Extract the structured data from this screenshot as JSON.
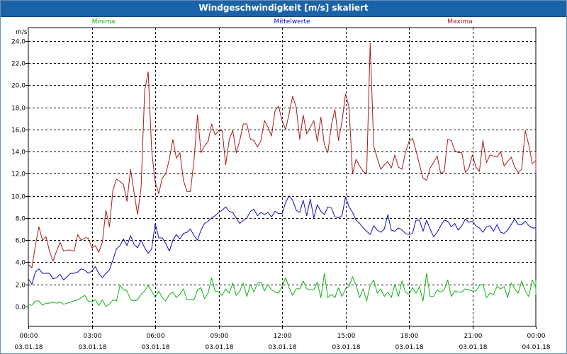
{
  "window": {
    "title": "Windgeschwindigkeit [m/s] skaliert"
  },
  "chart_data": {
    "type": "line",
    "title": "Windgeschwindigkeit [m/s] skaliert",
    "ylabel": "m/s",
    "xlabel": "",
    "ylim": [
      -1.8,
      25.2
    ],
    "xlim": [
      0,
      24
    ],
    "grid": true,
    "legend_placement": "top",
    "y_ticks": [
      "0.0",
      "2,0",
      "4,0",
      "6,0",
      "8,0",
      "10,0",
      "12,0",
      "14,0",
      "16,0",
      "18,0",
      "20,0",
      "22,0",
      "24,0"
    ],
    "y_tick_values": [
      0,
      2,
      4,
      6,
      8,
      10,
      12,
      14,
      16,
      18,
      20,
      22,
      24
    ],
    "x_ticks": [
      {
        "time": "00:00",
        "date": "03.01.18",
        "hour": 0
      },
      {
        "time": "03:00",
        "date": "03.01.18",
        "hour": 3
      },
      {
        "time": "06:00",
        "date": "03.01.18",
        "hour": 6
      },
      {
        "time": "09:00",
        "date": "03.01.18",
        "hour": 9
      },
      {
        "time": "12:00",
        "date": "03.01.18",
        "hour": 12
      },
      {
        "time": "15:00",
        "date": "03.01.18",
        "hour": 15
      },
      {
        "time": "18:00",
        "date": "03.01.18",
        "hour": 18
      },
      {
        "time": "21:00",
        "date": "03.01.18",
        "hour": 21
      },
      {
        "time": "00:00",
        "date": "04.01.18",
        "hour": 24
      }
    ],
    "x_hours_step": 0.166667,
    "series": [
      {
        "name": "Minima",
        "color": "#11b011",
        "values": [
          0.2,
          0.1,
          0.5,
          0.5,
          0.1,
          0.3,
          0.3,
          0.4,
          0.3,
          0.4,
          0.2,
          0.3,
          0.4,
          0.5,
          0.6,
          0.8,
          1.0,
          0.5,
          0.4,
          0.6,
          0.1,
          0.6,
          0.0,
          0.2,
          0.6,
          0.5,
          1.9,
          1.5,
          1.4,
          0.6,
          0.5,
          0.6,
          1.1,
          1.4,
          1.9,
          1.4,
          0.8,
          1.4,
          0.8,
          0.5,
          1.1,
          1.3,
          0.8,
          1.1,
          1.6,
          0.6,
          0.6,
          0.6,
          1.5,
          1.7,
          0.7,
          1.2,
          2.6,
          1.4,
          1.3,
          1.0,
          1.6,
          1.2,
          2.1,
          1.0,
          1.4,
          2.1,
          0.9,
          2.0,
          1.3,
          2.1,
          2.2,
          1.4,
          2.0,
          1.5,
          1.3,
          1.2,
          1.8,
          2.6,
          1.7,
          1.0,
          1.6,
          1.6,
          2.3,
          1.6,
          1.5,
          1.5,
          2.2,
          0.8,
          3.0,
          0.8,
          1.1,
          0.8,
          1.7,
          0.9,
          1.6,
          1.8,
          2.7,
          1.9,
          0.8,
          1.6,
          0.5,
          1.9,
          2.4,
          1.2,
          1.6,
          0.9,
          1.3,
          0.8,
          2.0,
          0.9,
          2.3,
          1.3,
          1.1,
          1.7,
          1.2,
          1.8,
          0.5,
          3.0,
          0.9,
          0.9,
          1.5,
          1.3,
          1.5,
          2.4,
          0.9,
          1.4,
          1.3,
          1.3,
          1.6,
          1.5,
          1.4,
          1.4,
          1.9,
          2.0,
          0.8,
          1.2,
          1.1,
          1.8,
          1.6,
          1.8,
          0.8,
          2.1,
          1.6,
          1.2,
          2.3,
          1.4,
          0.9,
          2.4,
          1.7,
          1.8,
          1.1,
          2.1,
          2.3,
          1.3
        ]
      },
      {
        "name": "Mittelwerte",
        "color": "#0b0bbf",
        "values": [
          2.5,
          2.0,
          3.1,
          3.4,
          3.0,
          3.0,
          3.0,
          2.5,
          2.6,
          2.9,
          2.4,
          2.7,
          3.0,
          3.0,
          3.1,
          3.4,
          3.3,
          3.0,
          3.2,
          3.6,
          3.0,
          2.6,
          3.0,
          3.3,
          4.2,
          5.2,
          5.5,
          6.1,
          5.5,
          6.4,
          5.6,
          5.3,
          6.0,
          5.3,
          4.8,
          5.2,
          7.5,
          6.2,
          6.2,
          5.7,
          5.0,
          6.0,
          6.5,
          6.1,
          6.6,
          6.7,
          7.0,
          6.4,
          6.0,
          6.9,
          7.5,
          7.7,
          8.0,
          8.2,
          8.5,
          8.7,
          9.0,
          8.6,
          8.5,
          8.0,
          7.5,
          7.8,
          8.0,
          8.6,
          8.8,
          8.2,
          8.5,
          8.3,
          8.5,
          8.1,
          8.6,
          8.4,
          8.4,
          9.4,
          10.0,
          9.6,
          8.7,
          8.5,
          9.6,
          8.2,
          9.7,
          8.0,
          9.2,
          8.6,
          8.3,
          9.0,
          8.9,
          8.1,
          8.0,
          8.2,
          9.9,
          9.0,
          8.5,
          7.8,
          7.5,
          7.1,
          6.8,
          6.5,
          7.3,
          6.9,
          6.7,
          7.0,
          8.3,
          6.9,
          6.8,
          7.1,
          6.9,
          6.6,
          6.5,
          6.6,
          7.8,
          7.8,
          6.8,
          7.8,
          7.0,
          6.3,
          6.7,
          7.3,
          7.8,
          7.7,
          7.2,
          7.5,
          6.9,
          7.3,
          7.9,
          7.6,
          7.7,
          7.3,
          7.1,
          6.7,
          7.2,
          7.3,
          6.8,
          7.4,
          6.7,
          6.6,
          6.9,
          7.4,
          7.9,
          7.4,
          7.4,
          7.7,
          7.3,
          7.1,
          7.1,
          7.6,
          7.5,
          7.8,
          7.7,
          7.9
        ]
      },
      {
        "name": "Maxima",
        "color": "#a81a1a",
        "values": [
          3.8,
          3.5,
          5.5,
          7.2,
          6.0,
          6.3,
          5.0,
          4.1,
          5.0,
          5.8,
          5.0,
          5.1,
          5.1,
          5.0,
          6.5,
          6.0,
          6.2,
          6.2,
          5.3,
          5.5,
          4.9,
          5.8,
          8.7,
          7.2,
          10.5,
          11.5,
          11.3,
          11.0,
          9.5,
          12.4,
          10.3,
          8.3,
          10.8,
          19.5,
          21.2,
          14.1,
          11.2,
          10.2,
          11.6,
          12.0,
          13.3,
          15.1,
          13.4,
          13.9,
          11.4,
          10.4,
          10.4,
          13.2,
          17.3,
          13.9,
          14.5,
          14.9,
          16.5,
          15.5,
          15.9,
          15.9,
          12.8,
          15.1,
          15.9,
          13.9,
          15.0,
          16.5,
          16.5,
          15.1,
          15.0,
          14.4,
          15.0,
          16.8,
          16.2,
          15.4,
          17.7,
          18.1,
          16.8,
          16.0,
          17.4,
          19.0,
          18.0,
          15.1,
          17.3,
          15.6,
          16.2,
          16.8,
          14.9,
          17.1,
          14.6,
          13.9,
          16.4,
          17.8,
          15.0,
          16.7,
          19.2,
          18.0,
          12.0,
          13.3,
          12.7,
          12.2,
          12.0,
          23.8,
          14.5,
          13.4,
          12.4,
          12.8,
          13.1,
          12.5,
          13.7,
          12.6,
          12.4,
          13.9,
          14.9,
          15.2,
          14.1,
          12.8,
          11.6,
          11.4,
          12.5,
          13.0,
          13.6,
          12.0,
          12.2,
          15.1,
          15.0,
          14.1,
          13.9,
          13.9,
          12.1,
          12.5,
          13.7,
          12.6,
          12.2,
          15.0,
          13.0,
          13.7,
          13.6,
          13.5,
          14.0,
          12.7,
          13.1,
          13.5,
          12.6,
          12.1,
          12.4,
          15.9,
          14.6,
          12.9,
          13.2,
          12.8,
          12.3,
          12.0,
          12.1,
          14.0
        ]
      }
    ]
  }
}
